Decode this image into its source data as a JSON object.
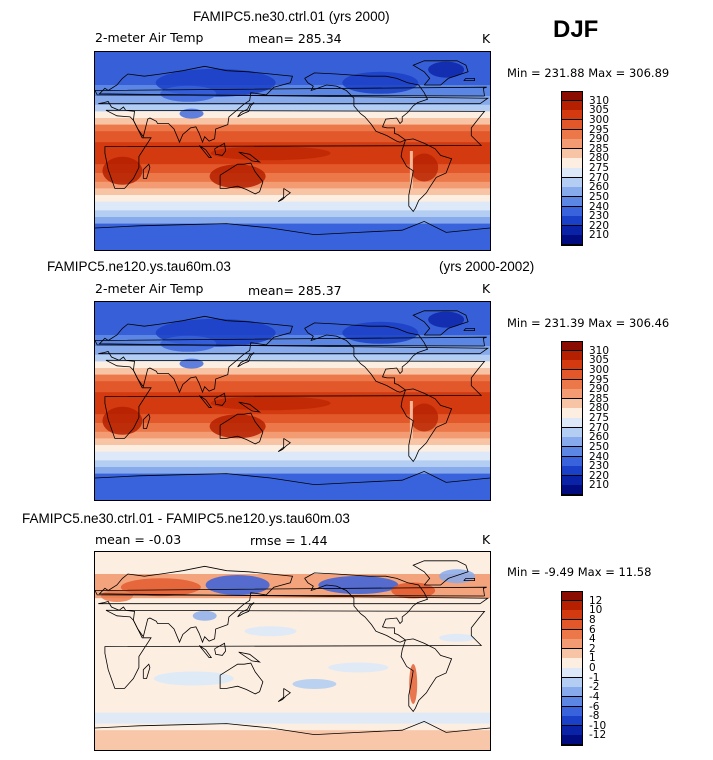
{
  "season": "DJF",
  "panels": [
    {
      "title": "FAMIPC5.ne30.ctrl.01 (yrs 2000)",
      "title_right": "",
      "variable": "2-meter Air Temp",
      "stat": "mean= 285.34",
      "stat2": "",
      "units": "K",
      "minmax": "Min = 231.88 Max = 306.89",
      "kind": "abs"
    },
    {
      "title": "FAMIPC5.ne120.ys.tau60m.03",
      "title_right": "(yrs 2000-2002)",
      "variable": "2-meter Air Temp",
      "stat": "mean= 285.37",
      "stat2": "",
      "units": "K",
      "minmax": "Min = 231.39 Max = 306.46",
      "kind": "abs"
    },
    {
      "title": "FAMIPC5.ne30.ctrl.01 - FAMIPC5.ne120.ys.tau60m.03",
      "title_right": "",
      "variable": "mean =  -0.03",
      "stat": "rmse =   1.44",
      "stat2": "",
      "units": "K",
      "minmax": "Min =  -9.49 Max =  11.58",
      "kind": "diff"
    }
  ],
  "colorbar_abs": {
    "labels": [
      "310",
      "305",
      "300",
      "295",
      "290",
      "285",
      "280",
      "275",
      "270",
      "260",
      "250",
      "240",
      "230",
      "220",
      "210"
    ],
    "colors": [
      "#8b0c00",
      "#b52000",
      "#d43a10",
      "#e2582a",
      "#ec7748",
      "#f39b72",
      "#f8c4a6",
      "#fdeee2",
      "#dde9f8",
      "#b4cdf2",
      "#87aaec",
      "#5b86e4",
      "#3863dc",
      "#1b40c8",
      "#0a22a6",
      "#000c80"
    ]
  },
  "colorbar_diff": {
    "labels": [
      "12",
      "10",
      "8",
      "6",
      "4",
      "2",
      "1",
      "0",
      "-1",
      "-2",
      "-4",
      "-6",
      "-8",
      "-10",
      "-12"
    ],
    "colors": [
      "#8b0c00",
      "#b52000",
      "#d43a10",
      "#e2582a",
      "#ec7748",
      "#f39b72",
      "#f8c4a6",
      "#fdeee2",
      "#dde9f8",
      "#b4cdf2",
      "#87aaec",
      "#5b86e4",
      "#3863dc",
      "#1b40c8",
      "#0a22a6",
      "#000c80"
    ]
  }
}
